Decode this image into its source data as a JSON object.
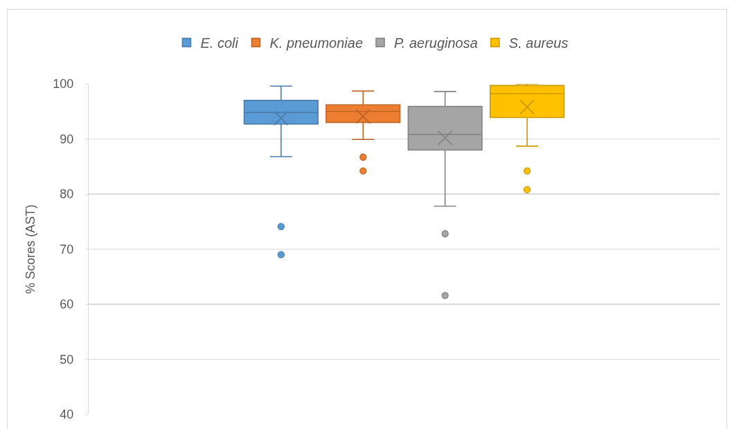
{
  "chart_data": {
    "type": "box",
    "ylabel": "% Scores (AST)",
    "categories": [
      null
    ],
    "ylim": [
      40,
      100
    ],
    "yticks": [
      40,
      50,
      60,
      70,
      80,
      90,
      100
    ],
    "grid": "y",
    "legend": "top",
    "tick_labels": "y",
    "series": [
      {
        "name": "E. coli",
        "color": "#5b9bd5",
        "boxes": [
          {
            "low": 86.8,
            "q1": 92.7,
            "median": 94.8,
            "q3": 97.0,
            "high": 99.6,
            "mean": 93.8,
            "outliers": [
              74.1,
              69.0
            ]
          }
        ]
      },
      {
        "name": "K. pneumoniae",
        "color": "#ed7d31",
        "boxes": [
          {
            "low": 89.9,
            "q1": 93.0,
            "median": 95.0,
            "q3": 96.2,
            "high": 98.7,
            "mean": 94.1,
            "outliers": [
              86.7,
              84.2
            ]
          }
        ]
      },
      {
        "name": "P. aeruginosa",
        "color": "#a5a5a5",
        "boxes": [
          {
            "low": 77.8,
            "q1": 88.0,
            "median": 90.8,
            "q3": 95.9,
            "high": 98.6,
            "mean": 90.2,
            "outliers": [
              72.8,
              61.6
            ]
          }
        ]
      },
      {
        "name": "S. aureus",
        "color": "#ffc000",
        "boxes": [
          {
            "low": 88.7,
            "q1": 93.9,
            "median": 98.2,
            "q3": 99.7,
            "high": 100.0,
            "mean": 95.8,
            "outliers": [
              84.2,
              80.8
            ]
          }
        ]
      }
    ]
  }
}
